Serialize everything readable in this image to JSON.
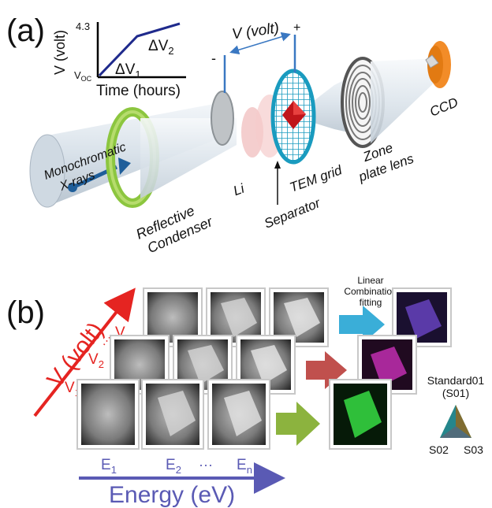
{
  "panel_a": {
    "label": "(a)",
    "inset": {
      "ylabel": "V (volt)",
      "xlabel": "Time (hours)",
      "y_top": "4.3",
      "y_bottom": "V",
      "y_bottom_sub": "OC",
      "dv1": "ΔV",
      "dv1_sub": "1",
      "dv2": "ΔV",
      "dv2_sub": "2"
    },
    "voltage_label": "V (volt)",
    "minus": "-",
    "plus": "+",
    "xray_line1": "Monochromatic",
    "xray_line2": "X-rays",
    "condenser_line1": "Reflective",
    "condenser_line2": "Condenser",
    "li": "Li",
    "separator": "Separator",
    "tem_grid": "TEM grid",
    "zone_line1": "Zone",
    "zone_line2": "plate lens",
    "ccd": "CCD"
  },
  "panel_b": {
    "label": "(b)",
    "v_axis": "V (volt)",
    "v1": "V",
    "v1_sub": "1",
    "v2": "V",
    "v2_sub": "2",
    "vn": "V",
    "vn_sub": "n",
    "e1": "E",
    "e1_sub": "1",
    "e2": "E",
    "e2_sub": "2",
    "en": "E",
    "en_sub": "n",
    "dots": "···",
    "energy_axis": "Energy (eV)",
    "fitting_line1": "Linear",
    "fitting_line2": "Combination",
    "fitting_line3": "fitting",
    "legend_title": "Standard01",
    "legend_sub": "(S01)",
    "s02": "S02",
    "s03": "S03"
  },
  "colors": {
    "inset_curve": "#1f2a8c",
    "condenser": "#8cc63f",
    "grid": "#1a9bbf",
    "ccd": "#f28c28",
    "voltage_arrow": "#e52421",
    "energy_arrow": "#5a5ab4",
    "arrow_cyan": "#3aaed8",
    "arrow_red": "#c0504d",
    "arrow_green": "#8cb33e"
  }
}
